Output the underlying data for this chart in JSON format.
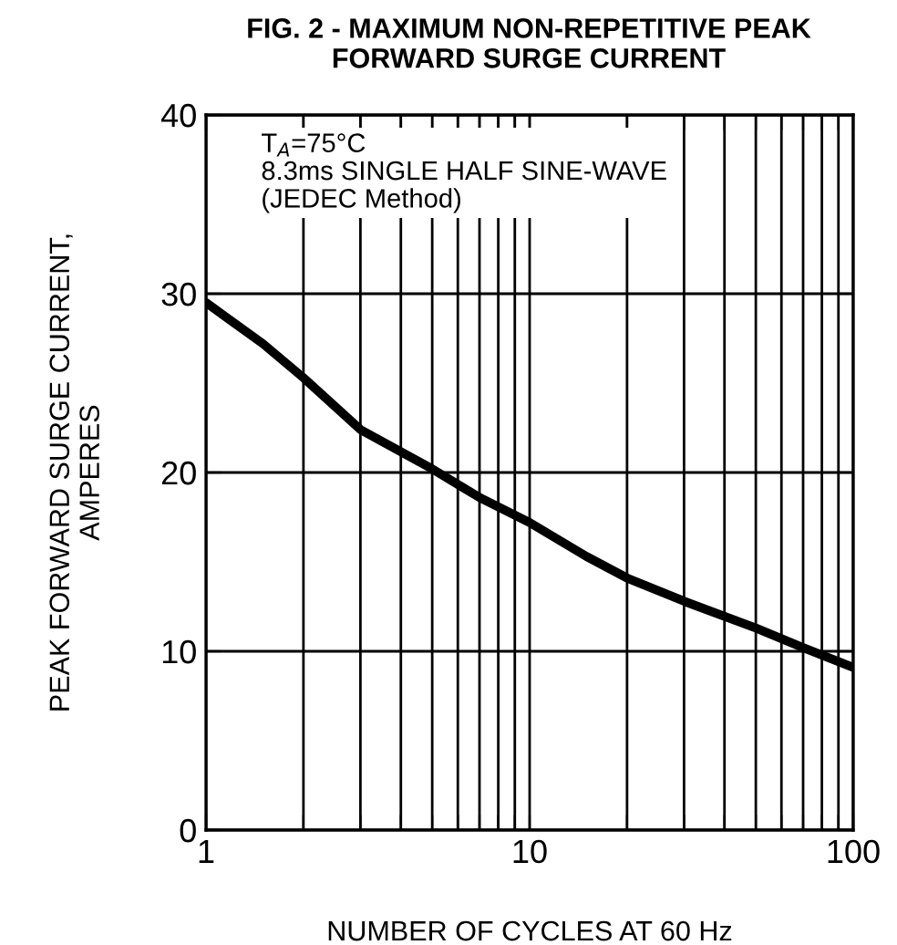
{
  "chart_data": {
    "type": "line",
    "title": "FIG. 2 - MAXIMUM NON-REPETITIVE PEAK\nFORWARD SURGE CURRENT",
    "xlabel": "NUMBER OF CYCLES AT 60 Hz",
    "ylabel": "PEAK FORWARD SURGE CURRENT,\nAMPERES",
    "annotations": [
      "T$_{A}$=75°C\n8.3ms SINGLE HALF SINE-WAVE\n(JEDEC Method)"
    ],
    "x": [
      1,
      1.5,
      2,
      3,
      5,
      7,
      10,
      15,
      20,
      30,
      50,
      70,
      100
    ],
    "series": [
      {
        "color": "#000000",
        "values": [
          29.5,
          27.2,
          25.3,
          22.4,
          20.2,
          18.6,
          17.2,
          15.3,
          14.1,
          12.8,
          11.3,
          10.2,
          9.1
        ]
      }
    ],
    "log": "x",
    "xlim": [
      1,
      100
    ],
    "ylim": [
      0,
      40
    ],
    "xticks": [
      1,
      {
        "value": 2,
        "label": null
      },
      {
        "value": 3,
        "label": null
      },
      {
        "value": 4,
        "label": null
      },
      {
        "value": 5,
        "label": null
      },
      {
        "value": 6,
        "label": null
      },
      {
        "value": 7,
        "label": null
      },
      {
        "value": 8,
        "label": null
      },
      {
        "value": 9,
        "label": null
      },
      10,
      {
        "value": 20,
        "label": null
      },
      {
        "value": 30,
        "label": null
      },
      {
        "value": 40,
        "label": null
      },
      {
        "value": 50,
        "label": null
      },
      {
        "value": 60,
        "label": null
      },
      {
        "value": 70,
        "label": null
      },
      {
        "value": 80,
        "label": null
      },
      {
        "value": 90,
        "label": null
      },
      100
    ],
    "yticks": [
      0,
      10,
      20,
      30,
      40
    ],
    "grid": true,
    "legend": false,
    "marker": "none",
    "line_style": "solid"
  }
}
